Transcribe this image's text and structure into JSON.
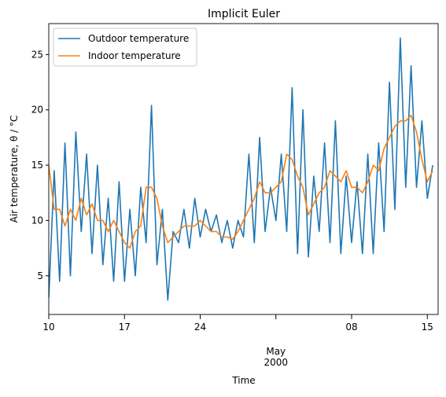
{
  "chart_data": {
    "type": "line",
    "title": "Implicit Euler",
    "xlabel": "Time",
    "ylabel": "Air temperature, θ / °C",
    "x": [
      "2000-04-10T00:00",
      "2000-04-10T12:00",
      "2000-04-11T00:00",
      "2000-04-11T12:00",
      "2000-04-12T00:00",
      "2000-04-12T12:00",
      "2000-04-13T00:00",
      "2000-04-13T12:00",
      "2000-04-14T00:00",
      "2000-04-14T12:00",
      "2000-04-15T00:00",
      "2000-04-15T12:00",
      "2000-04-16T00:00",
      "2000-04-16T12:00",
      "2000-04-17T00:00",
      "2000-04-17T12:00",
      "2000-04-18T00:00",
      "2000-04-18T12:00",
      "2000-04-19T00:00",
      "2000-04-19T12:00",
      "2000-04-20T00:00",
      "2000-04-20T12:00",
      "2000-04-21T00:00",
      "2000-04-21T12:00",
      "2000-04-22T00:00",
      "2000-04-22T12:00",
      "2000-04-23T00:00",
      "2000-04-23T12:00",
      "2000-04-24T00:00",
      "2000-04-24T12:00",
      "2000-04-25T00:00",
      "2000-04-25T12:00",
      "2000-04-26T00:00",
      "2000-04-26T12:00",
      "2000-04-27T00:00",
      "2000-04-27T12:00",
      "2000-04-28T00:00",
      "2000-04-28T12:00",
      "2000-04-29T00:00",
      "2000-04-29T12:00",
      "2000-04-30T00:00",
      "2000-04-30T12:00",
      "2000-05-01T00:00",
      "2000-05-01T12:00",
      "2000-05-02T00:00",
      "2000-05-02T12:00",
      "2000-05-03T00:00",
      "2000-05-03T12:00",
      "2000-05-04T00:00",
      "2000-05-04T12:00",
      "2000-05-05T00:00",
      "2000-05-05T12:00",
      "2000-05-06T00:00",
      "2000-05-06T12:00",
      "2000-05-07T00:00",
      "2000-05-07T12:00",
      "2000-05-08T00:00",
      "2000-05-08T12:00",
      "2000-05-09T00:00",
      "2000-05-09T12:00",
      "2000-05-10T00:00",
      "2000-05-10T12:00",
      "2000-05-11T00:00",
      "2000-05-11T12:00",
      "2000-05-12T00:00",
      "2000-05-12T12:00",
      "2000-05-13T00:00",
      "2000-05-13T12:00",
      "2000-05-14T00:00",
      "2000-05-14T12:00",
      "2000-05-15T00:00",
      "2000-05-15T12:00"
    ],
    "series": [
      {
        "name": "Outdoor temperature",
        "color": "#1f77b4",
        "values": [
          3,
          14.5,
          4.5,
          17,
          5,
          18,
          9,
          16,
          7,
          15,
          6,
          12,
          4.5,
          13.5,
          4.5,
          11,
          5,
          13,
          8,
          20.4,
          6,
          11,
          2.8,
          9,
          8,
          11,
          7.5,
          12,
          8.5,
          11,
          9,
          10.5,
          8,
          10,
          7.5,
          10,
          8.5,
          16,
          8,
          17.5,
          9,
          13,
          10,
          16,
          9,
          22,
          7,
          20,
          6.7,
          14,
          9,
          17,
          8,
          19,
          7,
          14,
          8,
          13.5,
          7,
          16,
          7,
          17,
          9,
          22.5,
          11,
          26.5,
          13,
          24,
          13,
          19,
          12,
          15
        ]
      },
      {
        "name": "Indoor temperature",
        "color": "#ff7f0e",
        "values": [
          15,
          11,
          11,
          9.5,
          11,
          10,
          12,
          10.5,
          11.5,
          10,
          10,
          9,
          10,
          9,
          8,
          7.5,
          9,
          9.5,
          13,
          13,
          12,
          9.5,
          8,
          8.5,
          9,
          9.5,
          9.5,
          9.5,
          10,
          9.5,
          9,
          9,
          8.5,
          8.5,
          8.3,
          9,
          10,
          11,
          12,
          13.5,
          12.5,
          12.5,
          13,
          13.5,
          16,
          15.5,
          14,
          13,
          10.5,
          11.5,
          12.5,
          13,
          14.5,
          14,
          13.5,
          14.5,
          13,
          13,
          12.5,
          13.5,
          15,
          14.5,
          16.5,
          17.5,
          18.5,
          19,
          19,
          19.5,
          18,
          15.5,
          13.5,
          14.5
        ]
      }
    ],
    "xlim": [
      "2000-04-10T00:00",
      "2000-05-16T00:00"
    ],
    "xticks": [
      {
        "value": "2000-04-10T00:00",
        "label": "10"
      },
      {
        "value": "2000-04-17T00:00",
        "label": "17"
      },
      {
        "value": "2000-04-24T00:00",
        "label": "24"
      },
      {
        "value": "2000-05-01T00:00",
        "label": "May 2000"
      },
      {
        "value": "2000-05-08T00:00",
        "label": "08"
      },
      {
        "value": "2000-05-15T00:00",
        "label": "15"
      }
    ],
    "ylim": [
      1.5,
      27.8
    ],
    "yticks": [
      5,
      10,
      15,
      20,
      25
    ],
    "legend": "upper left",
    "grid": false
  }
}
